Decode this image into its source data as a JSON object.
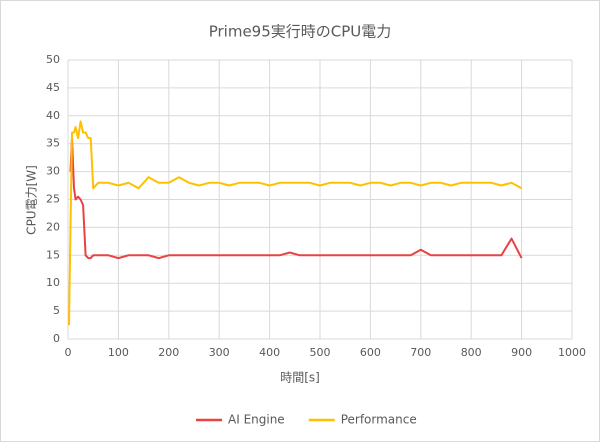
{
  "chart_data": {
    "type": "line",
    "title": "Prime95実行時のCPU電力",
    "xlabel": "時間[s]",
    "ylabel": "CPU電力[W]",
    "x": [
      2,
      5,
      8,
      12,
      15,
      20,
      25,
      30,
      35,
      40,
      45,
      50,
      60,
      80,
      100,
      120,
      140,
      160,
      180,
      200,
      220,
      240,
      260,
      280,
      300,
      320,
      340,
      360,
      380,
      400,
      420,
      440,
      460,
      480,
      500,
      520,
      540,
      560,
      580,
      600,
      620,
      640,
      660,
      680,
      700,
      720,
      740,
      760,
      780,
      800,
      820,
      840,
      860,
      880,
      900
    ],
    "series": [
      {
        "name": "AI Engine",
        "color": "#e84343",
        "values": [
          null,
          30,
          36,
          27,
          25,
          25.5,
          25,
          24,
          15,
          14.5,
          14.5,
          15,
          15,
          15,
          14.5,
          15,
          15,
          15,
          14.5,
          15,
          15,
          15,
          15,
          15,
          15,
          15,
          15,
          15,
          15,
          15,
          15,
          15.5,
          15,
          15,
          15,
          15,
          15,
          15,
          15,
          15,
          15,
          15,
          15,
          15,
          16,
          15,
          15,
          15,
          15,
          15,
          15,
          15,
          15,
          18,
          14.5
        ]
      },
      {
        "name": "Performance",
        "color": "#ffc000",
        "values": [
          2.5,
          20,
          37,
          37,
          38,
          36,
          39,
          37,
          37,
          36,
          36,
          27,
          28,
          28,
          27.5,
          28,
          27,
          29,
          28,
          28,
          29,
          28,
          27.5,
          28,
          28,
          27.5,
          28,
          28,
          28,
          27.5,
          28,
          28,
          28,
          28,
          27.5,
          28,
          28,
          28,
          27.5,
          28,
          28,
          27.5,
          28,
          28,
          27.5,
          28,
          28,
          27.5,
          28,
          28,
          28,
          28,
          27.5,
          28,
          27
        ]
      }
    ],
    "xlim": [
      0,
      1000
    ],
    "xticks": [
      0,
      100,
      200,
      300,
      400,
      500,
      600,
      700,
      800,
      900,
      1000
    ],
    "ylim": [
      0,
      50
    ],
    "yticks": [
      0,
      5,
      10,
      15,
      20,
      25,
      30,
      35,
      40,
      45,
      50
    ],
    "grid": true,
    "legend": "bottom"
  }
}
